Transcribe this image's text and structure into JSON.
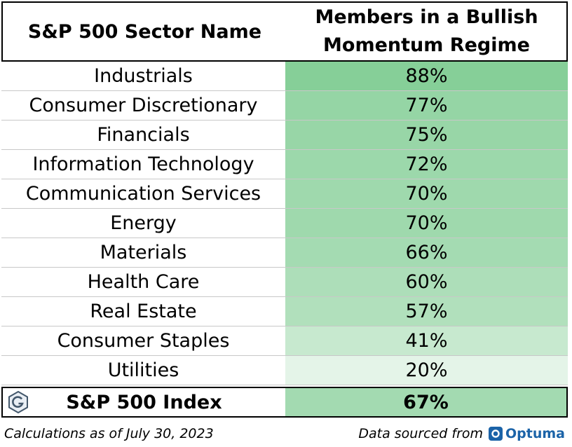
{
  "chart_data": {
    "type": "table",
    "columns": [
      "S&P 500 Sector Name",
      "Members in a Bullish Momentum Regime"
    ],
    "header": {
      "col1": "S&P 500 Sector Name",
      "col2_line1": "Members in a Bullish",
      "col2_line2": "Momentum Regime"
    },
    "rows": [
      {
        "name": "Industrials",
        "value": 88,
        "label": "88%"
      },
      {
        "name": "Consumer Discretionary",
        "value": 77,
        "label": "77%"
      },
      {
        "name": "Financials",
        "value": 75,
        "label": "75%"
      },
      {
        "name": "Information Technology",
        "value": 72,
        "label": "72%"
      },
      {
        "name": "Communication Services",
        "value": 70,
        "label": "70%"
      },
      {
        "name": "Energy",
        "value": 70,
        "label": "70%"
      },
      {
        "name": "Materials",
        "value": 66,
        "label": "66%"
      },
      {
        "name": "Health Care",
        "value": 60,
        "label": "60%"
      },
      {
        "name": "Real Estate",
        "value": 57,
        "label": "57%"
      },
      {
        "name": "Consumer Staples",
        "value": 41,
        "label": "41%"
      },
      {
        "name": "Utilities",
        "value": 20,
        "label": "20%"
      }
    ],
    "index_row": {
      "name": "S&P 500 Index",
      "value": 67,
      "label": "67%"
    }
  },
  "colors": {
    "heat_high": "#86cf98",
    "heat_low": "#ffffff",
    "optuma_blue": "#1b63a8"
  },
  "icons": {
    "logo": "hexagon-g-logo-icon",
    "optuma": "optuma-logo-icon"
  },
  "footer": {
    "left": "Calculations as of July 30, 2023",
    "right_prefix": "Data sourced from",
    "brand": "Optuma"
  }
}
